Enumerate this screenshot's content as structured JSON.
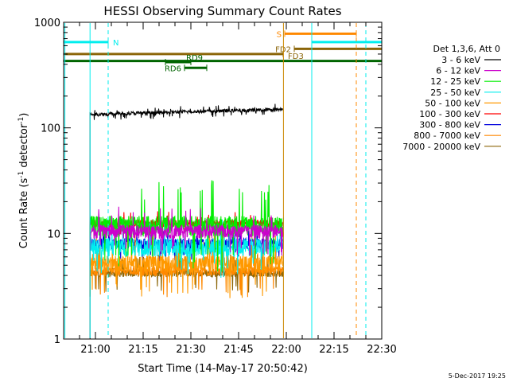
{
  "chart_data": {
    "type": "line",
    "title": "HESSI Observing Summary Count Rates",
    "xlabel": "Start Time (14-May-17 20:50:42)",
    "ylabel_parts": [
      "Count Rate (s",
      "-1",
      " detector",
      "-1",
      ")"
    ],
    "y_scale": "log",
    "ylim": [
      1,
      1000
    ],
    "xlim_minutes": [
      50,
      150
    ],
    "x_axis_start_hour": 20,
    "y_ticks": [
      {
        "value": 1,
        "label": "1"
      },
      {
        "value": 10,
        "label": "10"
      },
      {
        "value": 100,
        "label": "100"
      },
      {
        "value": 1000,
        "label": "1000"
      }
    ],
    "x_ticks": [
      {
        "minute": 60,
        "label": "21:00"
      },
      {
        "minute": 75,
        "label": "21:15"
      },
      {
        "minute": 90,
        "label": "21:30"
      },
      {
        "minute": 105,
        "label": "21:45"
      },
      {
        "minute": 120,
        "label": "22:00"
      },
      {
        "minute": 135,
        "label": "22:15"
      },
      {
        "minute": 150,
        "label": "22:30"
      }
    ],
    "legend_title": "Det 1,3,6, Att 0",
    "legend_placement": "right",
    "date_stamp": "5-Dec-2017 19:25",
    "series": [
      {
        "name": "3 - 6 keV",
        "color": "#000000",
        "start_minute": 58.3,
        "end_minute": 119.1,
        "start_value": 134,
        "end_value": 150,
        "noise": 0.04,
        "spike": 0.1
      },
      {
        "name": "6 - 12 keV",
        "color": "#cc00cc",
        "start_minute": 58.3,
        "end_minute": 119.1,
        "start_value": 10.5,
        "end_value": 10.5,
        "noise": 0.15,
        "spike": 0.5
      },
      {
        "name": "12 - 25 keV",
        "color": "#00ee00",
        "start_minute": 58.3,
        "end_minute": 119.1,
        "start_value": 12,
        "end_value": 12,
        "noise": 0.22,
        "spike": 1.2
      },
      {
        "name": "25 - 50 keV",
        "color": "#00eeee",
        "start_minute": 58.3,
        "end_minute": 119.1,
        "start_value": 7.5,
        "end_value": 7.5,
        "noise": 0.2,
        "spike": 0.6
      },
      {
        "name": "50 - 100 keV",
        "color": "#ff9900",
        "start_minute": 58.3,
        "end_minute": 119.1,
        "start_value": 5.2,
        "end_value": 5.2,
        "noise": 0.18,
        "spike": 0.8
      },
      {
        "name": "100 - 300 keV",
        "color": "#ff0000",
        "start_minute": 58.3,
        "end_minute": 119.1,
        "start_value": 12.5,
        "end_value": 12.5,
        "noise": 0.08,
        "spike": 0.2
      },
      {
        "name": "300 - 800 keV",
        "color": "#0000dd",
        "start_minute": 58.3,
        "end_minute": 119.1,
        "start_value": 8,
        "end_value": 8,
        "noise": 0.12,
        "spike": 0.3
      },
      {
        "name": "800 - 7000 keV",
        "color": "#ff8800",
        "start_minute": 58.3,
        "end_minute": 119.1,
        "start_value": 4.4,
        "end_value": 4.4,
        "noise": 0.1,
        "spike": 0.6
      },
      {
        "name": "7000 - 20000 keV",
        "color": "#8b6508",
        "start_minute": 58.3,
        "end_minute": 119.1,
        "start_value": 4.2,
        "end_value": 4.2,
        "noise": 0.08,
        "spike": 0.4
      }
    ],
    "flag_bars": [
      {
        "label": "N",
        "color": "#00eeee",
        "start_minute": 50,
        "end_minute": 64,
        "value": 650,
        "label_side": "right"
      },
      {
        "label": "",
        "color": "#00eeee",
        "start_minute": 128,
        "end_minute": 150,
        "value": 650,
        "label_side": "none"
      },
      {
        "label": "S",
        "color": "#ff8800",
        "start_minute": 119.5,
        "end_minute": 142,
        "value": 780,
        "label_side": "left"
      },
      {
        "label": "FD2",
        "color": "#8b6508",
        "start_minute": 122.5,
        "end_minute": 150,
        "value": 560,
        "label_side": "left"
      },
      {
        "label": "FD3",
        "color": "#8b6508",
        "start_minute": 50,
        "end_minute": 119,
        "value": 500,
        "label_side": "below-right"
      },
      {
        "label": "RD6",
        "color": "#006400",
        "start_minute": 50,
        "end_minute": 150,
        "value": 430,
        "label_side": "none"
      },
      {
        "label": "RD9",
        "color": "#006400",
        "start_minute": 82,
        "end_minute": 90,
        "value": 420,
        "label_side": "above-right"
      },
      {
        "label": "RD6",
        "color": "#006400",
        "start_minute": 88,
        "end_minute": 95,
        "value": 370,
        "label_side": "left"
      }
    ],
    "vertical_markers": [
      {
        "minute": 50.4,
        "color": "#00eeee",
        "style": "solid"
      },
      {
        "minute": 58.3,
        "color": "#00eeee",
        "style": "solid"
      },
      {
        "minute": 64,
        "color": "#00eeee",
        "style": "dashed"
      },
      {
        "minute": 119.1,
        "color": "#cc8800",
        "style": "solid"
      },
      {
        "minute": 128,
        "color": "#00eeee",
        "style": "solid"
      },
      {
        "minute": 142,
        "color": "#ff8800",
        "style": "dashed"
      },
      {
        "minute": 145,
        "color": "#00eeee",
        "style": "dashed"
      }
    ]
  }
}
